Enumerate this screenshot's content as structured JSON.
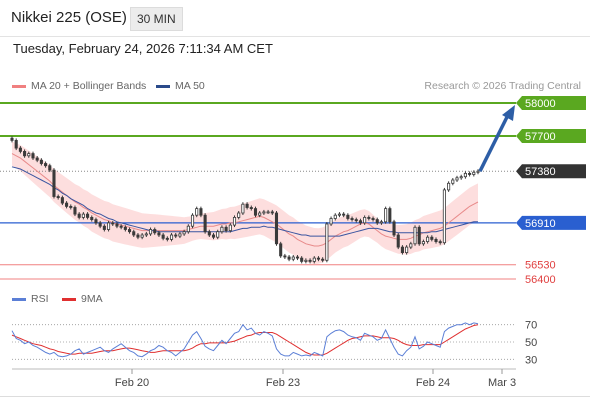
{
  "header": {
    "title": "Nikkei 225 (OSE)",
    "interval": "30 MIN"
  },
  "timestamp": "Tuesday, February 24, 2026 7:11:34 AM CET",
  "legend": {
    "ma20": "MA 20 + Bollinger Bands",
    "ma50": "MA 50",
    "credit": "Research © 2026 Trading Central"
  },
  "rsi_legend": {
    "rsi": "RSI",
    "ma": "9MA"
  },
  "colors": {
    "candle": "#3a3a3a",
    "band_fill": "#fcd6d6",
    "ma20": "#e88a8a",
    "ma50": "#3a55a0",
    "green": "#5aa820",
    "blue_level": "#2a5fd0",
    "red_level": "#f08080",
    "rsi": "#5b7fd6",
    "rsi_ma": "#e03030",
    "arrow": "#2d5ea6",
    "price_tag": "#333333"
  },
  "chart_data": [
    {
      "type": "candlestick",
      "title": "",
      "x_ticks": [
        "Feb 20",
        "Feb 23",
        "Feb 24",
        "Mar 3"
      ],
      "ylim": [
        56300,
        58100
      ],
      "levels": [
        {
          "label": "58000",
          "value": 58000,
          "style": "green"
        },
        {
          "label": "57700",
          "value": 57700,
          "style": "green"
        },
        {
          "label": "57380",
          "value": 57380,
          "style": "current"
        },
        {
          "label": "56910",
          "value": 56910,
          "style": "blue"
        },
        {
          "label": "56530",
          "value": 56530,
          "style": "red"
        },
        {
          "label": "56400",
          "value": 56400,
          "style": "red"
        }
      ],
      "close": [
        57660,
        57590,
        57560,
        57520,
        57540,
        57500,
        57480,
        57450,
        57430,
        57390,
        57150,
        57140,
        57090,
        57060,
        57050,
        56990,
        56960,
        56990,
        56960,
        56940,
        56910,
        56880,
        56850,
        56910,
        56900,
        56880,
        56870,
        56850,
        56830,
        56800,
        56780,
        56800,
        56810,
        56850,
        56820,
        56800,
        56770,
        56760,
        56800,
        56790,
        56810,
        56830,
        56880,
        56980,
        57040,
        56980,
        56830,
        56800,
        56780,
        56830,
        56870,
        56840,
        56890,
        56960,
        57000,
        57080,
        57050,
        57040,
        56980,
        57000,
        57010,
        57010,
        57000,
        56720,
        56610,
        56600,
        56580,
        56600,
        56590,
        56560,
        56570,
        56560,
        56590,
        56580,
        56570,
        56900,
        56950,
        56980,
        56990,
        56980,
        56950,
        56940,
        56930,
        56910,
        56960,
        56950,
        56940,
        56910,
        56920,
        57040,
        56920,
        56800,
        56690,
        56640,
        56690,
        56720,
        56870,
        56720,
        56740,
        56780,
        56760,
        56740,
        56730,
        57210,
        57270,
        57300,
        57320,
        57330,
        57360,
        57350,
        57370,
        57380
      ],
      "ma20": [
        57540,
        57520,
        57500,
        57470,
        57440,
        57410,
        57380,
        57350,
        57320,
        57290,
        57250,
        57220,
        57190,
        57160,
        57130,
        57100,
        57080,
        57050,
        57030,
        57000,
        56980,
        56960,
        56940,
        56930,
        56910,
        56900,
        56890,
        56880,
        56870,
        56860,
        56850,
        56840,
        56840,
        56840,
        56840,
        56840,
        56840,
        56840,
        56840,
        56840,
        56840,
        56840,
        56850,
        56860,
        56870,
        56880,
        56880,
        56880,
        56880,
        56890,
        56900,
        56900,
        56910,
        56910,
        56920,
        56930,
        56940,
        56950,
        56960,
        56970,
        56960,
        56940,
        56920,
        56900,
        56870,
        56840,
        56810,
        56790,
        56760,
        56740,
        56720,
        56710,
        56700,
        56700,
        56710,
        56730,
        56760,
        56790,
        56810,
        56830,
        56840,
        56860,
        56880,
        56900,
        56910,
        56900,
        56870,
        56840,
        56810,
        56790,
        56780,
        56770,
        56760,
        56760,
        56760,
        56770,
        56790,
        56800,
        56820,
        56830,
        56840,
        56850,
        56860,
        56880,
        56910,
        56940,
        56970,
        57000,
        57030,
        57060,
        57080,
        57100
      ],
      "ma50": [
        57420,
        57410,
        57400,
        57380,
        57360,
        57340,
        57320,
        57300,
        57280,
        57260,
        57230,
        57210,
        57180,
        57160,
        57130,
        57110,
        57090,
        57070,
        57040,
        57020,
        57000,
        56990,
        56970,
        56950,
        56940,
        56920,
        56910,
        56900,
        56890,
        56880,
        56870,
        56860,
        56850,
        56840,
        56840,
        56830,
        56830,
        56830,
        56830,
        56830,
        56830,
        56830,
        56830,
        56830,
        56830,
        56830,
        56830,
        56830,
        56830,
        56830,
        56830,
        56830,
        56830,
        56840,
        56850,
        56860,
        56860,
        56870,
        56870,
        56870,
        56880,
        56870,
        56870,
        56860,
        56850,
        56840,
        56830,
        56820,
        56810,
        56800,
        56800,
        56790,
        56790,
        56790,
        56790,
        56790,
        56790,
        56790,
        56790,
        56800,
        56810,
        56820,
        56830,
        56840,
        56850,
        56860,
        56860,
        56860,
        56850,
        56840,
        56830,
        56830,
        56820,
        56820,
        56820,
        56820,
        56820,
        56820,
        56820,
        56820,
        56830,
        56830,
        56840,
        56850,
        56860,
        56870,
        56880,
        56890,
        56900,
        56910,
        56920,
        56920
      ]
    },
    {
      "type": "line",
      "title": "RSI",
      "ylim": [
        20,
        80
      ],
      "y_ticks": [
        "70",
        "50",
        "30"
      ],
      "series": [
        {
          "name": "RSI",
          "values": [
            63,
            54,
            52,
            48,
            50,
            46,
            44,
            41,
            38,
            36,
            38,
            34,
            33,
            34,
            36,
            40,
            42,
            36,
            38,
            40,
            42,
            44,
            40,
            38,
            42,
            45,
            48,
            44,
            40,
            38,
            34,
            33,
            36,
            40,
            42,
            46,
            44,
            40,
            38,
            34,
            38,
            42,
            50,
            58,
            62,
            54,
            45,
            42,
            40,
            46,
            52,
            48,
            54,
            60,
            62,
            70,
            64,
            66,
            60,
            58,
            62,
            60,
            57,
            42,
            36,
            34,
            34,
            38,
            36,
            34,
            35,
            34,
            38,
            36,
            34,
            56,
            60,
            63,
            64,
            62,
            58,
            56,
            55,
            52,
            60,
            58,
            56,
            52,
            54,
            64,
            54,
            44,
            36,
            34,
            40,
            44,
            56,
            42,
            45,
            50,
            48,
            46,
            44,
            62,
            66,
            68,
            70,
            70,
            72,
            70,
            72,
            71
          ]
        },
        {
          "name": "9MA",
          "values": [
            58,
            56,
            54,
            52,
            50,
            48,
            47,
            46,
            44,
            42,
            41,
            39,
            38,
            37,
            36,
            36,
            37,
            37,
            37,
            37,
            38,
            39,
            40,
            40,
            40,
            41,
            42,
            43,
            43,
            42,
            41,
            40,
            39,
            38,
            38,
            39,
            40,
            40,
            40,
            40,
            40,
            40,
            41,
            43,
            46,
            48,
            48,
            49,
            49,
            49,
            49,
            49,
            50,
            51,
            53,
            55,
            57,
            58,
            60,
            61,
            61,
            61,
            61,
            59,
            56,
            53,
            50,
            47,
            44,
            41,
            38,
            36,
            35,
            35,
            35,
            37,
            40,
            43,
            46,
            49,
            52,
            54,
            55,
            56,
            57,
            57,
            57,
            56,
            55,
            55,
            55,
            54,
            52,
            49,
            47,
            46,
            46,
            46,
            47,
            47,
            47,
            47,
            47,
            50,
            53,
            56,
            59,
            62,
            65,
            67,
            69,
            70
          ]
        }
      ]
    }
  ]
}
